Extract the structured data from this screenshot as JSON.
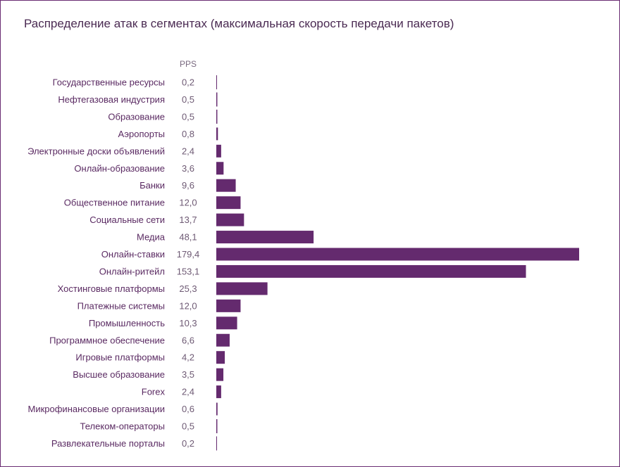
{
  "chart_data": {
    "type": "bar",
    "orientation": "horizontal",
    "title": "Распределение атак в сегментах (максимальная скорость передачи пакетов)",
    "unit": "PPS",
    "categories": [
      "Государственные ресурсы",
      "Нефтегазовая индустрия",
      "Образование",
      "Аэропорты",
      "Электронные доски объявлений",
      "Онлайн-образование",
      "Банки",
      "Общественное питание",
      "Социальные сети",
      "Медиа",
      "Онлайн-ставки",
      "Онлайн-ритейл",
      "Хостинговые платформы",
      "Платежные системы",
      "Промышленность",
      "Программное обеспечение",
      "Игровые платформы",
      "Высшее образование",
      "Forex",
      "Микрофинансовые организации",
      "Телеком-операторы",
      "Развлекательные порталы"
    ],
    "values": [
      0.2,
      0.5,
      0.5,
      0.8,
      2.4,
      3.6,
      9.6,
      12.0,
      13.7,
      48.1,
      179.4,
      153.1,
      25.3,
      12.0,
      10.3,
      6.6,
      4.2,
      3.5,
      2.4,
      0.6,
      0.5,
      0.2
    ],
    "value_labels": [
      "0,2",
      "0,5",
      "0,5",
      "0,8",
      "2,4",
      "3,6",
      "9,6",
      "12,0",
      "13,7",
      "48,1",
      "179,4",
      "153,1",
      "25,3",
      "12,0",
      "10,3",
      "6,6",
      "4,2",
      "3,5",
      "2,4",
      "0,6",
      "0,5",
      "0,2"
    ],
    "xlim": [
      0,
      179.4
    ],
    "bar_color": "#642a6e",
    "label_color": "#5a2a62",
    "frame_color": "#6a2c72",
    "grid": false
  }
}
